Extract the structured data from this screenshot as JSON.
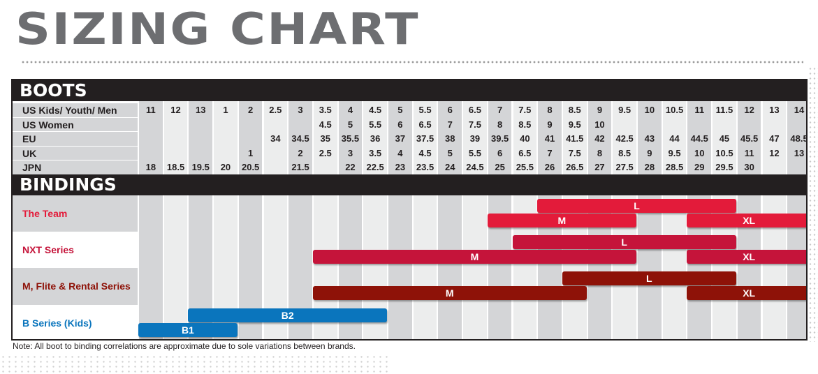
{
  "title": "SIZING CHART",
  "boots": {
    "header": "BOOTS",
    "rows": [
      {
        "label": "US Kids/ Youth/ Men",
        "values": [
          "11",
          "12",
          "13",
          "1",
          "2",
          "2.5",
          "3",
          "3.5",
          "4",
          "4.5",
          "5",
          "5.5",
          "6",
          "6.5",
          "7",
          "7.5",
          "8",
          "8.5",
          "9",
          "9.5",
          "10",
          "10.5",
          "11",
          "11.5",
          "12",
          "13",
          "14"
        ]
      },
      {
        "label": "US Women",
        "values": [
          "",
          "",
          "",
          "",
          "",
          "",
          "",
          "4.5",
          "5",
          "5.5",
          "6",
          "6.5",
          "7",
          "7.5",
          "8",
          "8.5",
          "9",
          "9.5",
          "10",
          "",
          "",
          "",
          "",
          "",
          "",
          "",
          ""
        ]
      },
      {
        "label": "EU",
        "values": [
          "",
          "",
          "",
          "",
          "",
          "34",
          "34.5",
          "35",
          "35.5",
          "36",
          "37",
          "37.5",
          "38",
          "39",
          "39.5",
          "40",
          "41",
          "41.5",
          "42",
          "42.5",
          "43",
          "44",
          "44.5",
          "45",
          "45.5",
          "47",
          "48.5"
        ]
      },
      {
        "label": "UK",
        "values": [
          "",
          "",
          "",
          "",
          "1",
          "",
          "2",
          "2.5",
          "3",
          "3.5",
          "4",
          "4.5",
          "5",
          "5.5",
          "6",
          "6.5",
          "7",
          "7.5",
          "8",
          "8.5",
          "9",
          "9.5",
          "10",
          "10.5",
          "11",
          "12",
          "13"
        ]
      },
      {
        "label": "JPN",
        "values": [
          "18",
          "18.5",
          "19.5",
          "20",
          "20.5",
          "",
          "21.5",
          "",
          "22",
          "22.5",
          "23",
          "23.5",
          "24",
          "24.5",
          "25",
          "25.5",
          "26",
          "26.5",
          "27",
          "27.5",
          "28",
          "28.5",
          "29",
          "29.5",
          "30",
          "",
          ""
        ]
      }
    ]
  },
  "bindings": {
    "header": "BINDINGS",
    "series": [
      {
        "name": "The Team",
        "color": "#e31b3a",
        "bars": [
          {
            "label": "L",
            "from_us": "8",
            "to_us": "11.5"
          },
          {
            "label": "M",
            "from_us": "7",
            "to_us": "9.5"
          },
          {
            "label": "XL",
            "from_us": "11",
            "to_us": "14"
          }
        ]
      },
      {
        "name": "NXT Series",
        "color": "#c5143a",
        "bars": [
          {
            "label": "L",
            "from_us": "7.5",
            "to_us": "11.5"
          },
          {
            "label": "M",
            "from_us": "3.5",
            "to_us": "9.5"
          },
          {
            "label": "XL",
            "from_us": "11",
            "to_us": "14"
          }
        ]
      },
      {
        "name": "M, Flite & Rental Series",
        "color": "#8e1208",
        "bars": [
          {
            "label": "L",
            "from_us": "8.5",
            "to_us": "11.5"
          },
          {
            "label": "M",
            "from_us": "3.5",
            "to_us": "8.5"
          },
          {
            "label": "XL",
            "from_us": "11",
            "to_us": "14"
          }
        ]
      },
      {
        "name": "B Series (Kids)",
        "color": "#0a75bd",
        "bars": [
          {
            "label": "B2",
            "from_us": "13",
            "to_us": "4.5"
          },
          {
            "label": "B1",
            "from_us": "11",
            "to_us": "1"
          }
        ]
      }
    ]
  },
  "note": "Note: All boot to binding correlations are approximate due to sole variations between brands.",
  "chart_data": {
    "type": "table",
    "title": "SIZING CHART",
    "columns_us": [
      "11",
      "12",
      "13",
      "1",
      "2",
      "2.5",
      "3",
      "3.5",
      "4",
      "4.5",
      "5",
      "5.5",
      "6",
      "6.5",
      "7",
      "7.5",
      "8",
      "8.5",
      "9",
      "9.5",
      "10",
      "10.5",
      "11",
      "11.5",
      "12",
      "13",
      "14"
    ]
  },
  "colors": {
    "title_gray": "#6d6e71",
    "header_black": "#231f20",
    "col_gray": "#d4d5d7",
    "col_light": "#eceded",
    "team_red": "#e31b3a",
    "nxt_red": "#c5143a",
    "flite_maroon": "#8e1208",
    "kids_blue": "#0a75bd"
  }
}
